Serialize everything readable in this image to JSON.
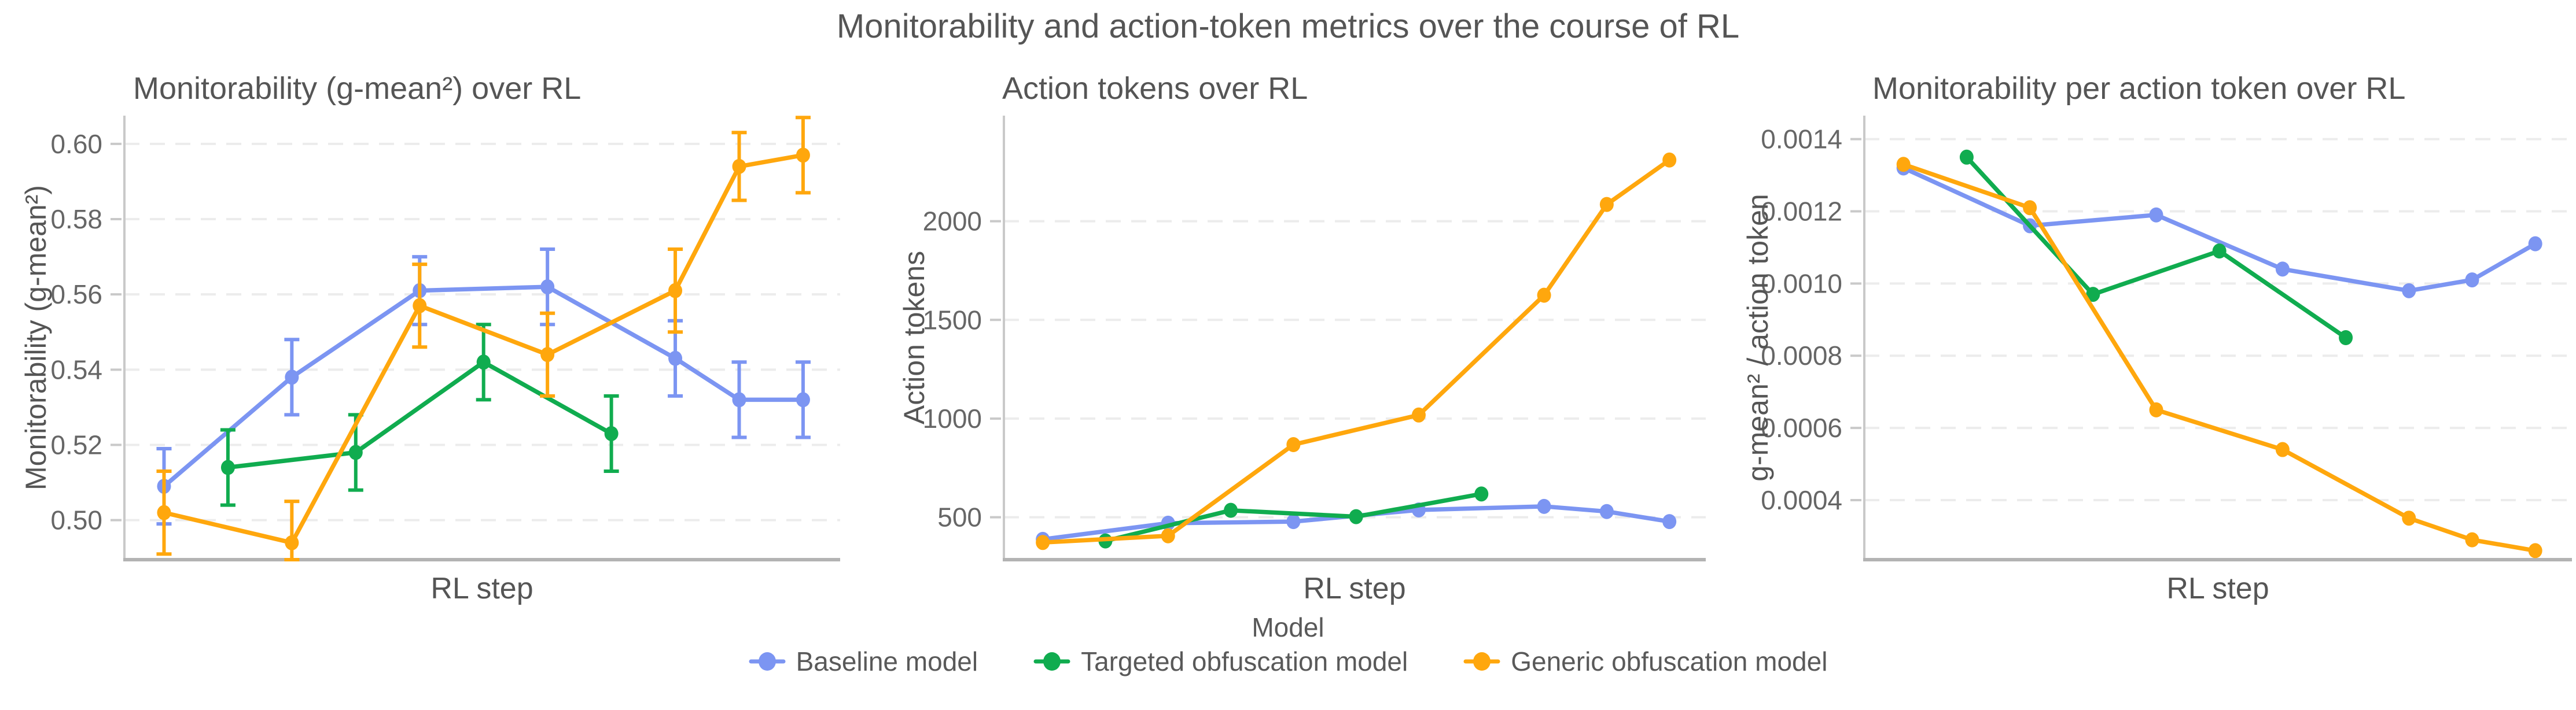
{
  "figure": {
    "suptitle": "Monitorability and action-token metrics over the course of RL",
    "background": "#ffffff"
  },
  "palette": {
    "baseline": "#7C95F2",
    "targeted": "#10AC4F",
    "generic": "#FFA70D",
    "grid": "#ececec",
    "spine": "#c9c9c9",
    "axis_line": "#b3b3b3",
    "title_text": "#555555",
    "tick_text": "#666666"
  },
  "legend": {
    "title": "Model",
    "position": "bottom-center",
    "items": [
      {
        "label": "Baseline model",
        "color": "baseline"
      },
      {
        "label": "Targeted obfuscation model",
        "color": "targeted"
      },
      {
        "label": "Generic obfuscation model",
        "color": "generic"
      }
    ]
  },
  "chart_data": [
    {
      "type": "line",
      "title": "Monitorability (g-mean²) over RL",
      "xlabel": "RL step",
      "ylabel": "Monitorability (g-mean²)",
      "x_tick_labels_shown": false,
      "grid": "horizontal-dashed",
      "error_bars": true,
      "ylim": [
        0.4895,
        0.6075
      ],
      "xlim": [
        -0.62,
        10.58
      ],
      "yticks": {
        "values": [
          0.5,
          0.52,
          0.54,
          0.56,
          0.58,
          0.6
        ],
        "labels": [
          "0.50",
          "0.52",
          "0.54",
          "0.56",
          "0.58",
          "0.60"
        ]
      },
      "series": [
        {
          "name": "Baseline model",
          "color": "baseline",
          "x": [
            0,
            2,
            4,
            6,
            8,
            9,
            10
          ],
          "y": [
            0.509,
            0.538,
            0.561,
            0.562,
            0.543,
            0.532,
            0.532
          ],
          "err": [
            0.01,
            0.01,
            0.009,
            0.01,
            0.01,
            0.01,
            0.01
          ]
        },
        {
          "name": "Targeted obfuscation model",
          "color": "targeted",
          "x": [
            1,
            3,
            5,
            7
          ],
          "y": [
            0.514,
            0.518,
            0.542,
            0.523
          ],
          "err": [
            0.01,
            0.01,
            0.01,
            0.01
          ]
        },
        {
          "name": "Generic obfuscation model",
          "color": "generic",
          "x": [
            0,
            2,
            4,
            6,
            8,
            9,
            10
          ],
          "y": [
            0.502,
            0.494,
            0.557,
            0.544,
            0.561,
            0.594,
            0.597
          ],
          "err": [
            0.011,
            0.011,
            0.011,
            0.011,
            0.011,
            0.009,
            0.01
          ]
        }
      ]
    },
    {
      "type": "line",
      "title": "Action tokens over RL",
      "xlabel": "RL step",
      "ylabel": "Action tokens",
      "x_tick_labels_shown": false,
      "grid": "horizontal-dashed",
      "error_bars": false,
      "ylim": [
        285,
        2535
      ],
      "xlim": [
        -0.62,
        10.58
      ],
      "yticks": {
        "values": [
          500,
          1000,
          1500,
          2000
        ],
        "labels": [
          "500",
          "1000",
          "1500",
          "2000"
        ]
      },
      "series": [
        {
          "name": "Baseline model",
          "color": "baseline",
          "x": [
            0,
            2,
            4,
            6,
            8,
            9,
            10
          ],
          "y": [
            388,
            470,
            478,
            537,
            555,
            529,
            478
          ]
        },
        {
          "name": "Targeted obfuscation model",
          "color": "targeted",
          "x": [
            1,
            3,
            5,
            7
          ],
          "y": [
            380,
            535,
            503,
            618
          ]
        },
        {
          "name": "Generic obfuscation model",
          "color": "generic",
          "x": [
            0,
            2,
            4,
            6,
            8,
            9,
            10
          ],
          "y": [
            372,
            406,
            868,
            1018,
            1625,
            2085,
            2310
          ]
        }
      ]
    },
    {
      "type": "line",
      "title": "Monitorability per action token over RL",
      "xlabel": "RL step",
      "ylabel": "g-mean² / action token",
      "x_tick_labels_shown": false,
      "grid": "horizontal-dashed",
      "error_bars": false,
      "ylim": [
        0.000235,
        0.001465
      ],
      "xlim": [
        -0.62,
        10.58
      ],
      "yticks": {
        "values": [
          0.0004,
          0.0006,
          0.0008,
          0.001,
          0.0012,
          0.0014
        ],
        "labels": [
          "0.0004",
          "0.0006",
          "0.0008",
          "0.0010",
          "0.0012",
          "0.0014"
        ]
      },
      "series": [
        {
          "name": "Baseline model",
          "color": "baseline",
          "x": [
            0,
            2,
            4,
            6,
            8,
            9,
            10
          ],
          "y": [
            0.00132,
            0.00116,
            0.00119,
            0.00104,
            0.00098,
            0.00101,
            0.00111
          ]
        },
        {
          "name": "Targeted obfuscation model",
          "color": "targeted",
          "x": [
            1,
            3,
            5,
            7
          ],
          "y": [
            0.00135,
            0.00097,
            0.00109,
            0.00085
          ]
        },
        {
          "name": "Generic obfuscation model",
          "color": "generic",
          "x": [
            0,
            2,
            4,
            6,
            8,
            9,
            10
          ],
          "y": [
            0.00133,
            0.00121,
            0.00065,
            0.00054,
            0.00035,
            0.00029,
            0.00026
          ]
        }
      ]
    }
  ]
}
